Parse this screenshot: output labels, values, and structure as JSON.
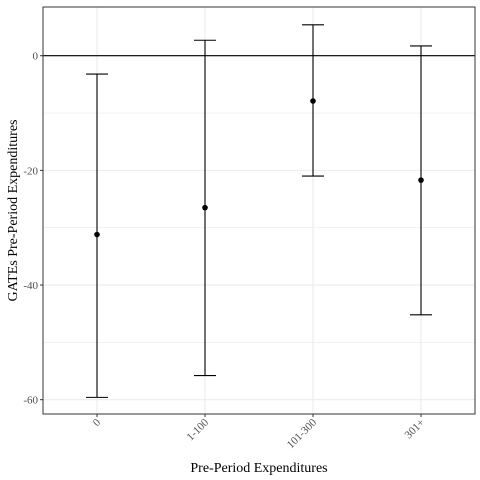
{
  "chart_data": {
    "type": "errorbar",
    "xlabel": "Pre-Period Expenditures",
    "ylabel": "GATEs Pre-Period Expenditures",
    "categories": [
      "0",
      "1-100",
      "101-300",
      "301+"
    ],
    "estimates": [
      -31.2,
      -26.5,
      -7.9,
      -21.7
    ],
    "lower": [
      -59.6,
      -55.8,
      -21.0,
      -45.2
    ],
    "upper": [
      -3.2,
      2.7,
      5.4,
      1.7
    ],
    "ylim": [
      -62.5,
      8.5
    ],
    "yticks": [
      0,
      -20,
      -40,
      -60
    ],
    "ytick_labels": [
      "0",
      "-20",
      "-40",
      "-60"
    ],
    "reference_line": 0,
    "grid": true,
    "colors": {
      "grid": "#ebebeb",
      "panel_border": "#333333",
      "marks": "#000000"
    }
  }
}
